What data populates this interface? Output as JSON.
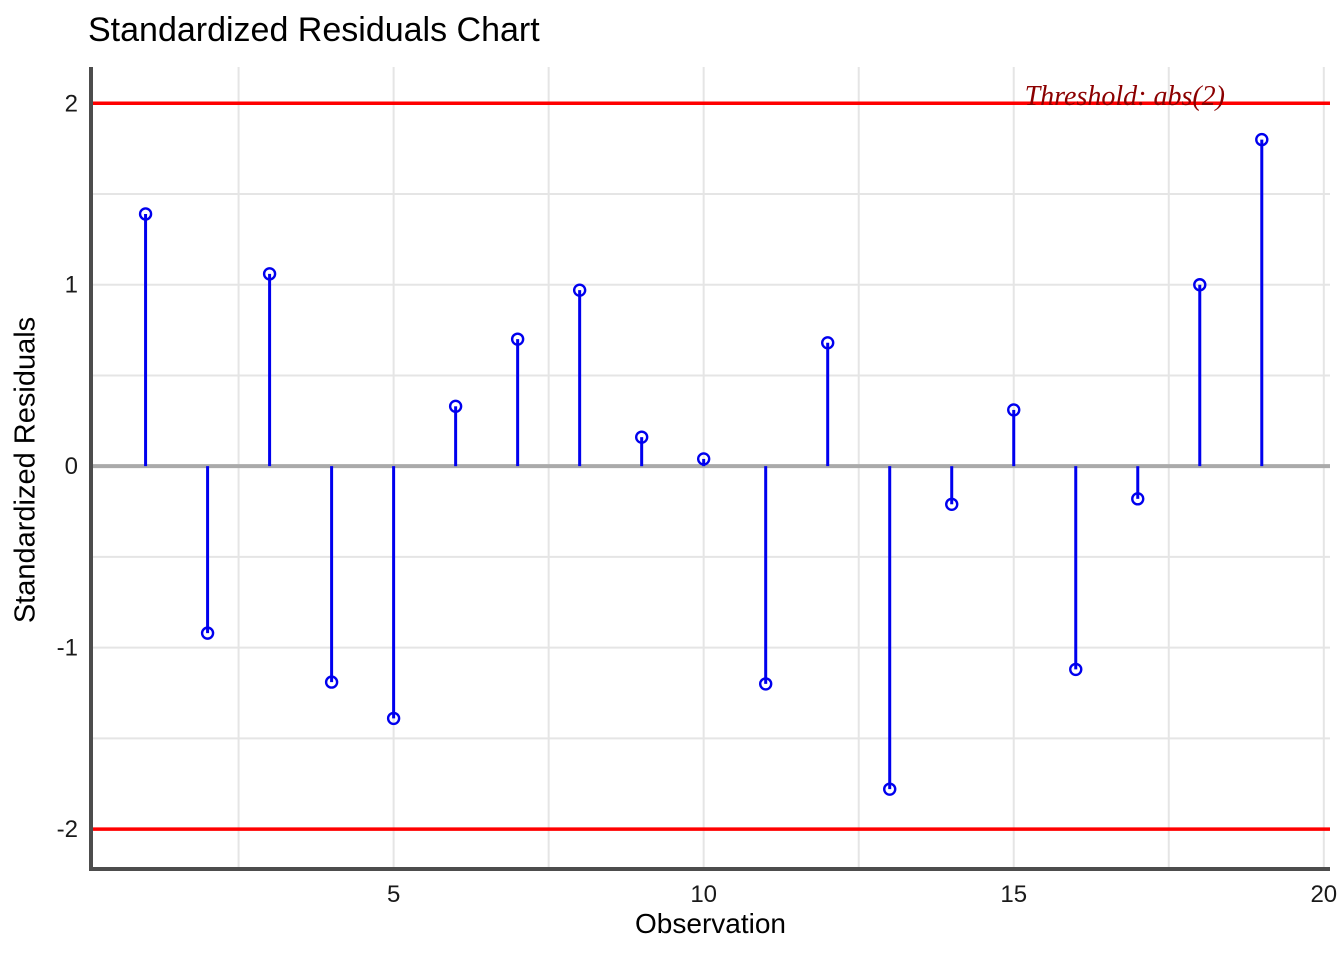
{
  "figure": {
    "title": "Standardized Residuals Chart"
  },
  "chart_data": {
    "type": "scatter",
    "variant": "stem-lollipop",
    "title": "Standardized Residuals Chart",
    "xlabel": "Observation",
    "ylabel": "Standardized Residuals",
    "x": [
      1,
      2,
      3,
      4,
      5,
      6,
      7,
      8,
      9,
      10,
      11,
      12,
      13,
      14,
      15,
      16,
      17,
      18,
      19
    ],
    "y": [
      1.39,
      -0.92,
      1.06,
      -1.19,
      -1.39,
      0.33,
      0.7,
      0.97,
      0.16,
      0.04,
      -1.2,
      0.68,
      -1.78,
      -0.21,
      0.31,
      -1.12,
      -0.18,
      1.0,
      1.8
    ],
    "xticks": [
      5,
      10,
      15,
      20
    ],
    "yticks": [
      -2,
      -1,
      0,
      1,
      2
    ],
    "xlim": [
      0.12,
      20.1
    ],
    "ylim": [
      -2.22,
      2.2
    ],
    "grid": true,
    "grid_x": [
      2.5,
      5,
      7.5,
      10,
      12.5,
      15,
      17.5,
      20
    ],
    "grid_y": [
      -2,
      -1.5,
      -1,
      -0.5,
      0.5,
      1,
      1.5,
      2
    ],
    "threshold": {
      "value": 2,
      "label": "Threshold: abs(2)",
      "line_color": "#FF0000",
      "label_color": "#8B0000"
    },
    "zero_line_color": "#AAAAAA",
    "grid_color": "#E5E5E5",
    "axis_line_color": "#4d4d4d",
    "stem_color": "#0000EE",
    "marker": "open-circle",
    "legend": null
  }
}
